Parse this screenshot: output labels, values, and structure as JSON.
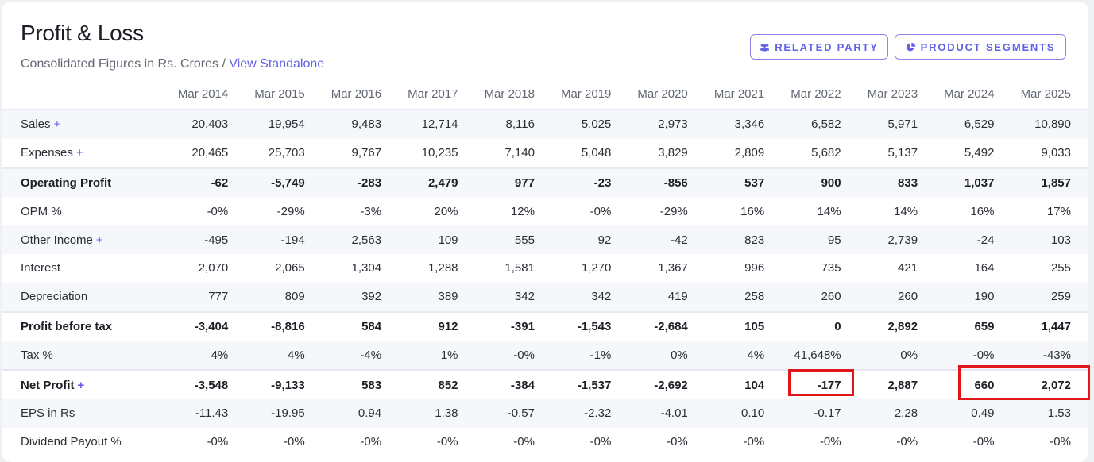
{
  "header": {
    "title": "Profit & Loss",
    "subtitle": "Consolidated Figures in Rs. Crores /",
    "link": "View Standalone"
  },
  "buttons": {
    "related_party": "RELATED PARTY",
    "product_segments": "PRODUCT SEGMENTS"
  },
  "icons": {
    "related_party": "users-icon",
    "product_segments": "pie-chart-icon"
  },
  "colors": {
    "accent": "#6560e8",
    "highlight": "#e0161b"
  },
  "columns": [
    "Mar 2014",
    "Mar 2015",
    "Mar 2016",
    "Mar 2017",
    "Mar 2018",
    "Mar 2019",
    "Mar 2020",
    "Mar 2021",
    "Mar 2022",
    "Mar 2023",
    "Mar 2024",
    "Mar 2025"
  ],
  "rows": [
    {
      "label": "Sales",
      "expandable": true,
      "bold": false,
      "values": [
        "20,403",
        "19,954",
        "9,483",
        "12,714",
        "8,116",
        "5,025",
        "2,973",
        "3,346",
        "6,582",
        "5,971",
        "6,529",
        "10,890"
      ]
    },
    {
      "label": "Expenses",
      "expandable": true,
      "bold": false,
      "values": [
        "20,465",
        "25,703",
        "9,767",
        "10,235",
        "7,140",
        "5,048",
        "3,829",
        "2,809",
        "5,682",
        "5,137",
        "5,492",
        "9,033"
      ]
    },
    {
      "label": "Operating Profit",
      "expandable": false,
      "bold": true,
      "values": [
        "-62",
        "-5,749",
        "-283",
        "2,479",
        "977",
        "-23",
        "-856",
        "537",
        "900",
        "833",
        "1,037",
        "1,857"
      ]
    },
    {
      "label": "OPM %",
      "expandable": false,
      "bold": false,
      "values": [
        "-0%",
        "-29%",
        "-3%",
        "20%",
        "12%",
        "-0%",
        "-29%",
        "16%",
        "14%",
        "14%",
        "16%",
        "17%"
      ]
    },
    {
      "label": "Other Income",
      "expandable": true,
      "bold": false,
      "values": [
        "-495",
        "-194",
        "2,563",
        "109",
        "555",
        "92",
        "-42",
        "823",
        "95",
        "2,739",
        "-24",
        "103"
      ]
    },
    {
      "label": "Interest",
      "expandable": false,
      "bold": false,
      "values": [
        "2,070",
        "2,065",
        "1,304",
        "1,288",
        "1,581",
        "1,270",
        "1,367",
        "996",
        "735",
        "421",
        "164",
        "255"
      ]
    },
    {
      "label": "Depreciation",
      "expandable": false,
      "bold": false,
      "values": [
        "777",
        "809",
        "392",
        "389",
        "342",
        "342",
        "419",
        "258",
        "260",
        "260",
        "190",
        "259"
      ]
    },
    {
      "label": "Profit before tax",
      "expandable": false,
      "bold": true,
      "values": [
        "-3,404",
        "-8,816",
        "584",
        "912",
        "-391",
        "-1,543",
        "-2,684",
        "105",
        "0",
        "2,892",
        "659",
        "1,447"
      ]
    },
    {
      "label": "Tax %",
      "expandable": false,
      "bold": false,
      "values": [
        "4%",
        "4%",
        "-4%",
        "1%",
        "-0%",
        "-1%",
        "0%",
        "4%",
        "41,648%",
        "0%",
        "-0%",
        "-43%"
      ]
    },
    {
      "label": "Net Profit",
      "expandable": true,
      "bold": true,
      "values": [
        "-3,548",
        "-9,133",
        "583",
        "852",
        "-384",
        "-1,537",
        "-2,692",
        "104",
        "-177",
        "2,887",
        "660",
        "2,072"
      ]
    },
    {
      "label": "EPS in Rs",
      "expandable": false,
      "bold": false,
      "values": [
        "-11.43",
        "-19.95",
        "0.94",
        "1.38",
        "-0.57",
        "-2.32",
        "-4.01",
        "0.10",
        "-0.17",
        "2.28",
        "0.49",
        "1.53"
      ]
    },
    {
      "label": "Dividend Payout %",
      "expandable": false,
      "bold": false,
      "values": [
        "-0%",
        "-0%",
        "-0%",
        "-0%",
        "-0%",
        "-0%",
        "-0%",
        "-0%",
        "-0%",
        "-0%",
        "-0%",
        "-0%"
      ]
    }
  ],
  "plus_symbol": "+"
}
